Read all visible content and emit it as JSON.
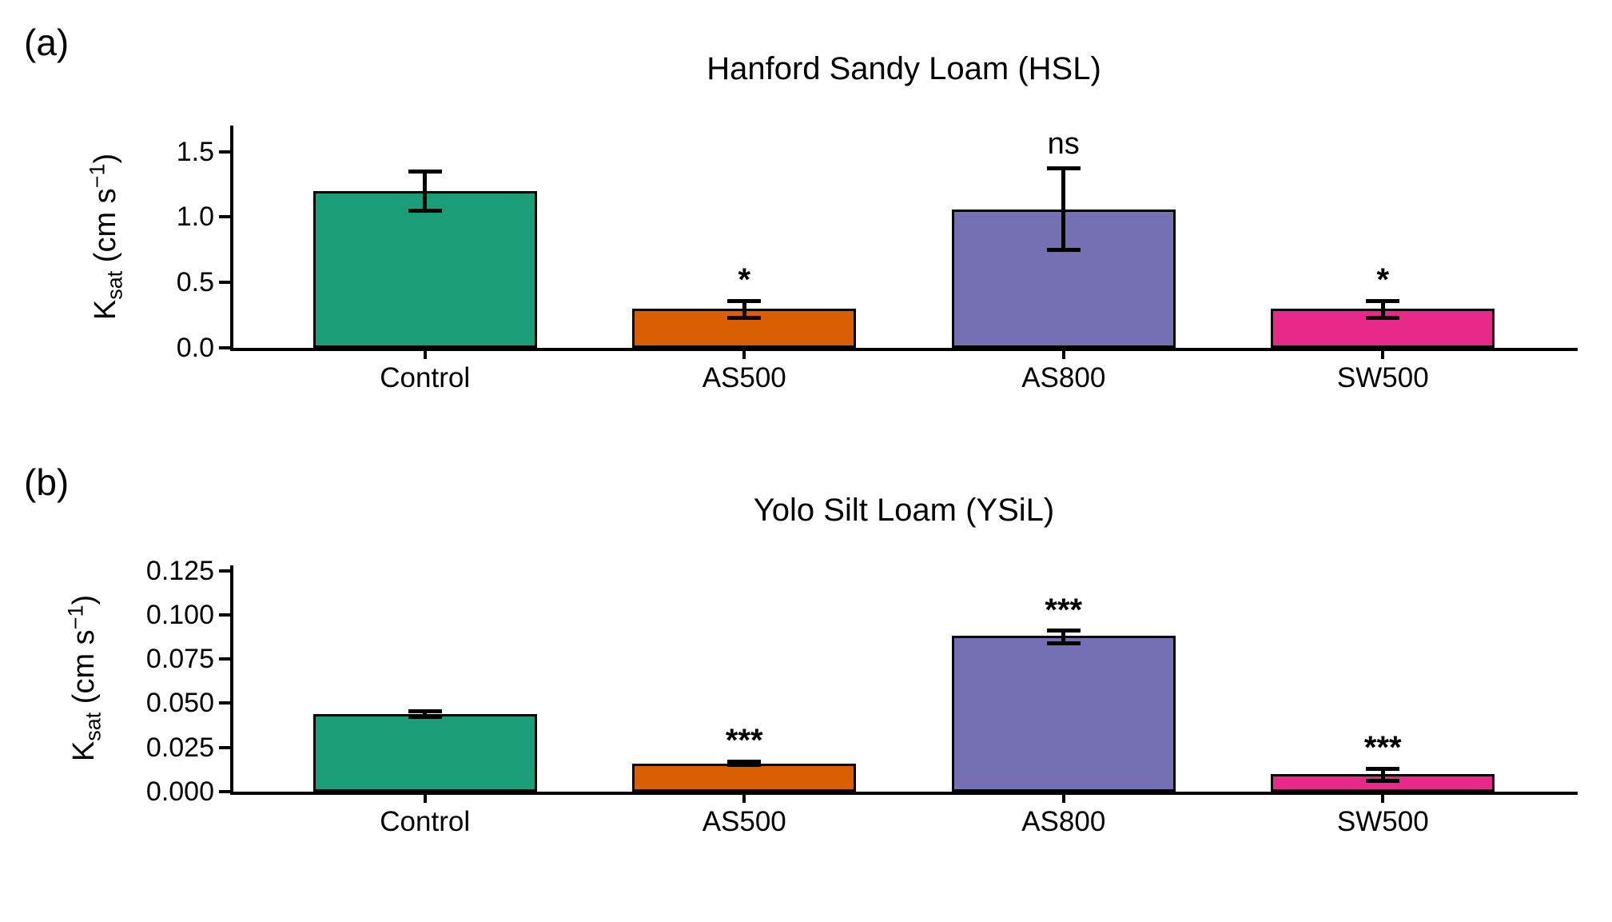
{
  "figure": {
    "background": "#ffffff",
    "axis_color": "#000000"
  },
  "chart_data": [
    {
      "type": "bar",
      "panel_label": "(a)",
      "title": "Hanford Sandy Loam (HSL)",
      "categories": [
        "Control",
        "AS500",
        "AS800",
        "SW500"
      ],
      "values": [
        1.2,
        0.3,
        1.06,
        0.3
      ],
      "error_low": [
        1.05,
        0.23,
        0.75,
        0.23
      ],
      "error_high": [
        1.35,
        0.36,
        1.37,
        0.36
      ],
      "significance": [
        "",
        "*",
        "ns",
        "*"
      ],
      "bar_colors": [
        "#1B9E77",
        "#D95F02",
        "#7570B3",
        "#E7298A"
      ],
      "ylabel": "Ksat (cm s⁻¹)",
      "ylabel_parts": {
        "base": "K",
        "sub": "sat",
        "mid": " (cm s",
        "sup": "−1",
        "end": ")"
      },
      "xlabel": "",
      "yticks": [
        0.0,
        0.5,
        1.0,
        1.5
      ],
      "ytick_labels": [
        "0.0",
        "0.5",
        "1.0",
        "1.5"
      ],
      "ylim": [
        0,
        1.7
      ],
      "grid": false,
      "legend": false
    },
    {
      "type": "bar",
      "panel_label": "(b)",
      "title": "Yolo Silt Loam (YSiL)",
      "categories": [
        "Control",
        "AS500",
        "AS800",
        "SW500"
      ],
      "values": [
        0.044,
        0.016,
        0.088,
        0.01
      ],
      "error_low": [
        0.0425,
        0.015,
        0.084,
        0.006
      ],
      "error_high": [
        0.0455,
        0.017,
        0.091,
        0.013
      ],
      "significance": [
        "",
        "***",
        "***",
        "***"
      ],
      "bar_colors": [
        "#1B9E77",
        "#D95F02",
        "#7570B3",
        "#E7298A"
      ],
      "ylabel": "Ksat (cm s⁻¹)",
      "ylabel_parts": {
        "base": "K",
        "sub": "sat",
        "mid": " (cm s",
        "sup": "−1",
        "end": ")"
      },
      "xlabel": "",
      "yticks": [
        0.0,
        0.025,
        0.05,
        0.075,
        0.1,
        0.125
      ],
      "ytick_labels": [
        "0.000",
        "0.025",
        "0.050",
        "0.075",
        "0.100",
        "0.125"
      ],
      "ylim": [
        0,
        0.128
      ],
      "grid": false,
      "legend": false
    }
  ]
}
